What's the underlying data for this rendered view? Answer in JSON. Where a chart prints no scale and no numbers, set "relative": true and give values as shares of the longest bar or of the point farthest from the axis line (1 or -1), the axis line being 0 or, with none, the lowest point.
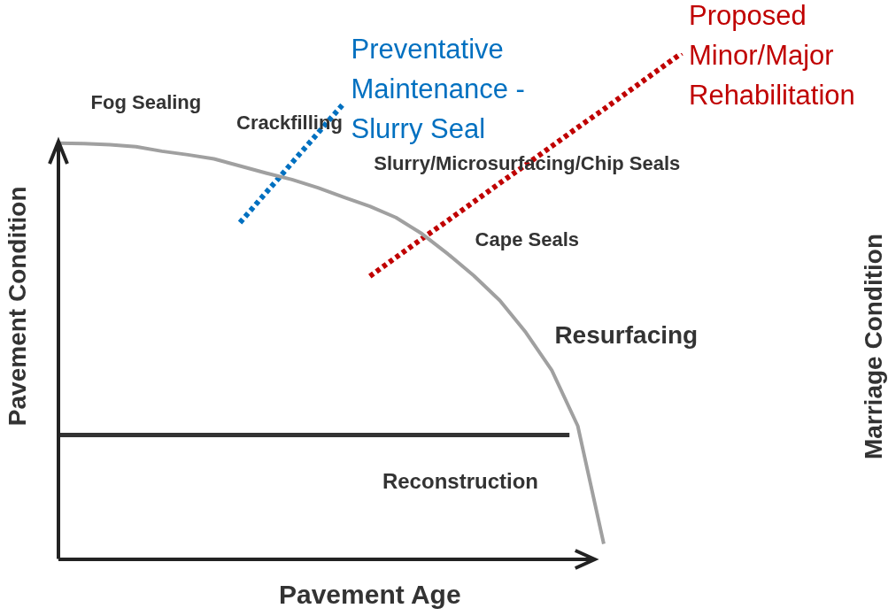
{
  "chart_data": {
    "type": "line",
    "relative": true,
    "xlabel": "Pavement Age",
    "ylabel": "Pavement Condition",
    "grid": false,
    "legend": false,
    "marker": "none",
    "categories": [
      null,
      null,
      null,
      null,
      null,
      null,
      null,
      null,
      null,
      null,
      null,
      null,
      null,
      null,
      null,
      null,
      null,
      null,
      null,
      null,
      null,
      null,
      null,
      null,
      null
    ],
    "series": [
      {
        "color": "#a0a0a0",
        "line_style": "solid",
        "values": [
          0.822,
          0.821,
          0.819,
          0.815,
          0.806,
          0.799,
          0.791,
          0.777,
          0.763,
          0.75,
          0.734,
          0.715,
          0.697,
          0.675,
          0.643,
          0.603,
          0.56,
          0.511,
          0.448,
          0.373,
          0.263,
          0.03,
          null,
          null,
          null
        ]
      },
      {
        "name": "Preventative Maintenance - Slurry Seal",
        "color": "#0070c0",
        "line_style": "dotted",
        "values": [
          null,
          null,
          null,
          null,
          null,
          null,
          null,
          0.665,
          0.724,
          0.783,
          0.842,
          0.901,
          null,
          null,
          null,
          null,
          null,
          null,
          null,
          null,
          null,
          null,
          null,
          null,
          null
        ]
      },
      {
        "name": "Proposed Minor/Major Rehabilitation",
        "color": "#c00000",
        "line_style": "dotted",
        "values": [
          null,
          null,
          null,
          null,
          null,
          null,
          null,
          null,
          null,
          null,
          null,
          null,
          0.559,
          0.596,
          0.633,
          0.669,
          0.706,
          0.743,
          0.779,
          0.816,
          0.853,
          0.889,
          0.926,
          0.963,
          1.0
        ]
      }
    ],
    "ref_lines": [
      {
        "axis": "y",
        "value": 0.245,
        "color": "#333333",
        "line_style": "solid"
      }
    ],
    "annotations": [
      "Fog Sealing",
      "Crackfilling",
      "Slurry/Microsurfacing/Chip Seals",
      "Cape Seals",
      "Resurfacing",
      "Reconstruction",
      "Marriage Condition"
    ]
  }
}
